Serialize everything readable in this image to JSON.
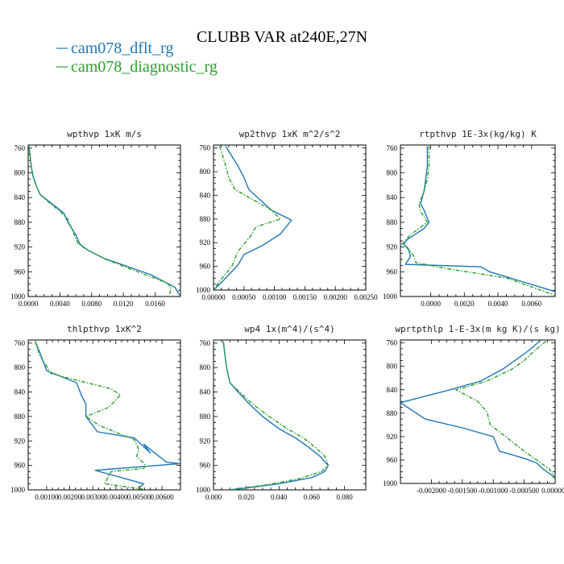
{
  "figure": {
    "title": "CLUBB VAR at240E,27N",
    "legend": [
      {
        "label": "cam078_dflt_rg",
        "color": "#1f77b4",
        "dash": "solid"
      },
      {
        "label": "cam078_diagnostic_rg",
        "color": "#2ca02c",
        "dash": "dashdot"
      }
    ]
  },
  "chart_data": [
    {
      "type": "line",
      "title": "wpthvp  1xK m/s",
      "xlim": [
        0,
        0.0192
      ],
      "ylim": [
        1000,
        755
      ],
      "yticks": [
        760,
        800,
        840,
        880,
        920,
        960,
        1000
      ],
      "xticks": [
        0,
        0.004,
        0.008,
        0.012,
        0.016
      ],
      "xticklabels": [
        "0.0000",
        "0.0040",
        "0.0080",
        "0.0120",
        "0.0160"
      ],
      "series": [
        {
          "name": "cam078_dflt_rg",
          "x": [
            0.0001,
            0.0002,
            0.0004,
            0.0006,
            0.001,
            0.0015,
            0.003,
            0.0045,
            0.005,
            0.006,
            0.0065,
            0.0075,
            0.0095,
            0.0122,
            0.0155,
            0.0185,
            0.0192
          ],
          "y": [
            757,
            770,
            790,
            805,
            820,
            835,
            850,
            865,
            880,
            900,
            915,
            925,
            938,
            950,
            965,
            985,
            1000
          ]
        },
        {
          "name": "cam078_diagnostic_rg",
          "x": [
            0.0001,
            0.0002,
            0.0004,
            0.0006,
            0.001,
            0.0015,
            0.0028,
            0.004,
            0.005,
            0.0058,
            0.0063,
            0.0075,
            0.0098,
            0.0122,
            0.0148,
            0.0175,
            0.018,
            0.0178
          ],
          "y": [
            757,
            770,
            790,
            805,
            820,
            835,
            850,
            862,
            875,
            900,
            915,
            925,
            940,
            952,
            965,
            978,
            985,
            1000
          ]
        }
      ]
    },
    {
      "type": "line",
      "title": "wp2thvp  1xK m^2/s^2",
      "xlim": [
        0,
        0.0025
      ],
      "ylim": [
        1000,
        755
      ],
      "yticks": [
        760,
        800,
        840,
        880,
        920,
        960,
        1000
      ],
      "xticks": [
        0,
        0.0005,
        0.001,
        0.0015,
        0.002,
        0.0025
      ],
      "xticklabels": [
        "0.00000",
        "0.00050",
        "0.00100",
        "0.00150",
        "0.00200",
        "0.00250"
      ],
      "series": [
        {
          "name": "cam078_dflt_rg",
          "x": [
            0.0002,
            0.0004,
            0.0005,
            0.00058,
            0.00095,
            0.00128,
            0.0011,
            0.0008,
            0.0005,
            0.0004,
            0.00015,
            0
          ],
          "y": [
            757,
            790,
            810,
            830,
            865,
            882,
            905,
            925,
            940,
            958,
            985,
            1000
          ]
        },
        {
          "name": "cam078_diagnostic_rg",
          "x": [
            0.0001,
            0.0002,
            0.00025,
            0.00035,
            0.00095,
            0.0011,
            0.0007,
            0.0006,
            0.0004,
            0.0003,
            0.0001,
            0
          ],
          "y": [
            757,
            790,
            810,
            830,
            865,
            880,
            893,
            910,
            935,
            960,
            985,
            1000
          ]
        }
      ]
    },
    {
      "type": "line",
      "title": "rtpthvp  1E-3x(kg/kg) K",
      "xlim": [
        -0.0018,
        0.0074
      ],
      "ylim": [
        1000,
        755
      ],
      "yticks": [
        760,
        800,
        840,
        880,
        920,
        960,
        1000
      ],
      "xticks": [
        0,
        0.002,
        0.004,
        0.006
      ],
      "xticklabels": [
        "0.0000",
        "0.0020",
        "0.0040",
        "0.0060"
      ],
      "series": [
        {
          "name": "cam078_dflt_rg",
          "x": [
            -0.0002,
            -0.0002,
            -0.0003,
            -0.0004,
            -0.0006,
            -0.0004,
            -0.0001,
            -0.0004,
            -0.0014,
            -0.0016,
            -0.0013,
            -0.0012,
            -0.0015,
            0.003,
            0.0035,
            0.0074
          ],
          "y": [
            757,
            790,
            810,
            830,
            850,
            860,
            880,
            890,
            908,
            915,
            925,
            935,
            948,
            952,
            960,
            992
          ]
        },
        {
          "name": "cam078_diagnostic_rg",
          "x": [
            -0.0001,
            -0.0001,
            -0.0002,
            -0.0004,
            -0.0007,
            -0.0006,
            -0.0002,
            -0.0006,
            -0.0012,
            -0.0017,
            -0.0014,
            -0.001,
            -0.0009,
            0.001,
            0.0045,
            0.0074
          ],
          "y": [
            757,
            790,
            810,
            830,
            850,
            862,
            880,
            888,
            900,
            915,
            920,
            935,
            945,
            955,
            970,
            998
          ]
        }
      ]
    },
    {
      "type": "line",
      "title": "thlpthvp  1xK^2",
      "xlim": [
        0.0002,
        0.0068
      ],
      "ylim": [
        1000,
        755
      ],
      "yticks": [
        760,
        800,
        840,
        880,
        920,
        960,
        1000
      ],
      "xticks": [
        0.001,
        0.002,
        0.003,
        0.004,
        0.005,
        0.006
      ],
      "xticklabels": [
        "0.00100",
        "0.00200",
        "0.00300",
        "0.00400",
        "0.00500",
        "0.00600"
      ],
      "series": [
        {
          "name": "cam078_dflt_rg",
          "x": [
            0.0005,
            0.0007,
            0.001,
            0.0023,
            0.0025,
            0.0027,
            0.0027,
            0.0032,
            0.0048,
            0.0055,
            0.0052,
            0.0062,
            0.0068,
            0.0031,
            0.0052,
            0.005
          ],
          "y": [
            757,
            775,
            805,
            825,
            845,
            860,
            880,
            905,
            915,
            940,
            925,
            955,
            957,
            968,
            990,
            997
          ]
        },
        {
          "name": "cam078_diagnostic_rg",
          "x": [
            0.0005,
            0.0007,
            0.0012,
            0.0038,
            0.0042,
            0.0037,
            0.0027,
            0.0033,
            0.0048,
            0.005,
            0.0049,
            0.0053,
            0.0052,
            0.0038,
            0.0035,
            0.0052
          ],
          "y": [
            757,
            780,
            810,
            835,
            845,
            865,
            880,
            895,
            918,
            935,
            945,
            960,
            965,
            970,
            990,
            999
          ]
        }
      ]
    },
    {
      "type": "line",
      "title": "wp4  1x(m^4)/(s^4)",
      "xlim": [
        0,
        0.093
      ],
      "ylim": [
        1000,
        755
      ],
      "yticks": [
        760,
        800,
        840,
        880,
        920,
        960,
        1000
      ],
      "xticks": [
        0,
        0.02,
        0.04,
        0.06,
        0.08
      ],
      "xticklabels": [
        "0.000",
        "0.020",
        "0.040",
        "0.060",
        "0.080"
      ],
      "series": [
        {
          "name": "cam078_dflt_rg",
          "x": [
            0.006,
            0.007,
            0.008,
            0.01,
            0.015,
            0.022,
            0.03,
            0.04,
            0.05,
            0.058,
            0.065,
            0.07,
            0.068,
            0.06,
            0.04,
            0.02,
            0.01
          ],
          "y": [
            757,
            780,
            800,
            825,
            840,
            860,
            880,
            900,
            915,
            930,
            945,
            960,
            970,
            980,
            990,
            997,
            1000
          ]
        },
        {
          "name": "cam078_diagnostic_rg",
          "x": [
            0.006,
            0.007,
            0.008,
            0.01,
            0.016,
            0.024,
            0.034,
            0.045,
            0.055,
            0.062,
            0.068,
            0.07,
            0.066,
            0.052,
            0.032,
            0.012
          ],
          "y": [
            757,
            780,
            800,
            825,
            840,
            860,
            880,
            900,
            915,
            930,
            945,
            960,
            970,
            982,
            992,
            999
          ]
        }
      ]
    },
    {
      "type": "line",
      "title": "wprtpthlp  1-E-3x(m kg K)/(s kg)",
      "xlim": [
        -0.0025,
        0
      ],
      "ylim": [
        1000,
        755
      ],
      "yticks": [
        760,
        800,
        840,
        880,
        920,
        960,
        1000
      ],
      "xticks": [
        -0.002,
        -0.0015,
        -0.001,
        -0.0005,
        0
      ],
      "xticklabels": [
        "-0.002000",
        "-0.001500",
        "-0.001000",
        "-0.000500",
        "0.000000"
      ],
      "series": [
        {
          "name": "cam078_dflt_rg",
          "x": [
            -0.00025,
            -0.00045,
            -0.00065,
            -0.00085,
            -0.0012,
            -0.0017,
            -0.0025,
            -0.0021,
            -0.0015,
            -0.001,
            -0.0009,
            -0.0005,
            -0.0003,
            -0.0002,
            0
          ],
          "y": [
            757,
            775,
            790,
            805,
            825,
            840,
            862,
            890,
            905,
            920,
            945,
            957,
            965,
            975,
            990
          ]
        },
        {
          "name": "cam078_diagnostic_rg",
          "x": [
            -0.00015,
            -0.00035,
            -0.0005,
            -0.0007,
            -0.0011,
            -0.0016,
            -0.00125,
            -0.0011,
            -0.00105,
            -0.0008,
            -0.0005,
            -0.0003,
            -0.0001,
            0
          ],
          "y": [
            757,
            775,
            790,
            805,
            825,
            840,
            860,
            878,
            900,
            920,
            945,
            960,
            975,
            990
          ]
        }
      ]
    }
  ]
}
